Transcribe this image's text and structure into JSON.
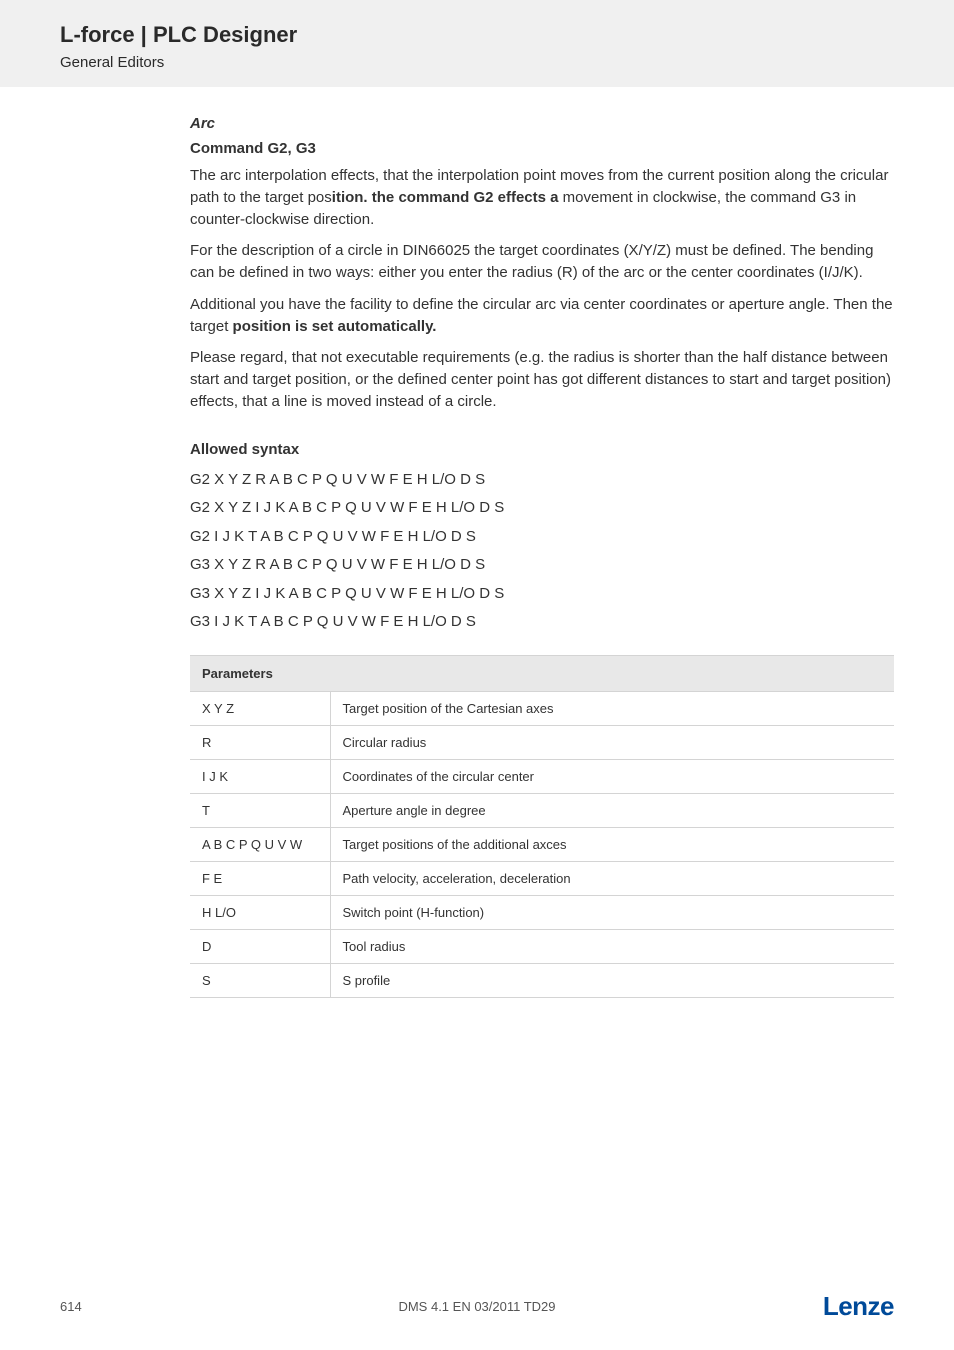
{
  "header": {
    "title": "L-force | PLC Designer",
    "subtitle": "General Editors"
  },
  "section": {
    "heading_italic": "Arc",
    "heading_bold": "Command G2, G3",
    "para1_pre": "The arc interpolation effects, that the interpolation point moves from the current position along the cricular path to the target pos",
    "para1_bold": "ition. the command G2 effects a",
    "para1_post": " movement in clockwise, the command G3 in counter-clockwise direction.",
    "para2": "For the description of a circle in DIN66025 the target coordinates (X/Y/Z) must be defined. The bending can be defined in two ways: either you enter the radius (R) of the arc or the center coordinates (I/J/K).",
    "para3_pre": "Additional you have the facility to define the circular arc via center coordinates or aperture angle. Then the target ",
    "para3_bold": "position is set automatically.",
    "para4": "Please regard, that not executable requirements (e.g. the radius is shorter than the half distance between start and target position, or the defined center point has got different distances to start and target position) effects, that a line is moved instead of a circle."
  },
  "syntax": {
    "heading": "Allowed syntax",
    "lines": [
      "G2 X Y Z R A B C P Q U V W F E H L/O D S",
      "G2 X Y Z I J K A B C P Q U V W F E H L/O D S",
      "G2 I J K T A B C P Q U V W F E H L/O D S",
      "G3 X Y Z R A B C P Q U V W F E H L/O D S",
      "G3 X Y Z I J K A B C P Q U V W F E H L/O D S",
      "G3 I J K T A B C P Q U V W F E H L/O D S"
    ]
  },
  "table": {
    "header": "Parameters",
    "rows": [
      {
        "k": "X Y Z",
        "v": "Target position of the Cartesian axes"
      },
      {
        "k": "R",
        "v": "Circular radius"
      },
      {
        "k": "I J K",
        "v": "Coordinates of the circular center"
      },
      {
        "k": "T",
        "v": "Aperture angle in degree"
      },
      {
        "k": "A B C P Q U V W",
        "v": "Target positions of the additional axces"
      },
      {
        "k": "F E",
        "v": "Path velocity, acceleration, deceleration"
      },
      {
        "k": "H L/O",
        "v": "Switch point (H-function)"
      },
      {
        "k": "D",
        "v": "Tool radius"
      },
      {
        "k": "S",
        "v": "S profile"
      }
    ]
  },
  "footer": {
    "page": "614",
    "center": "DMS 4.1 EN 03/2011 TD29",
    "logo": "Lenze"
  }
}
